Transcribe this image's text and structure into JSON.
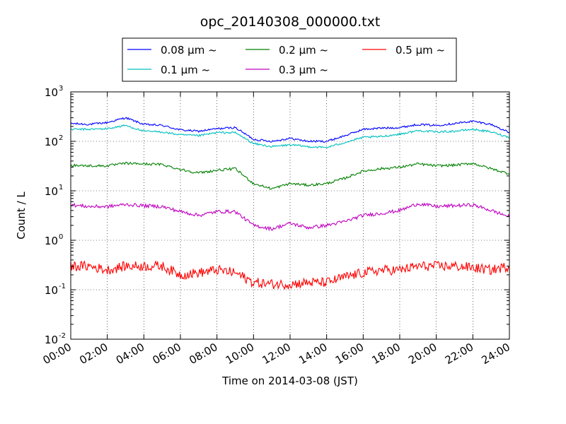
{
  "chart_data": {
    "type": "line",
    "title": "opc_20140308_000000.txt",
    "xlabel": "Time on 2014-03-08 (JST)",
    "ylabel": "Count / L",
    "yscale": "log",
    "ylim_exponents": [
      -2,
      3
    ],
    "yticks": [
      {
        "base": "10",
        "exp": "-2"
      },
      {
        "base": "10",
        "exp": "-1"
      },
      {
        "base": "10",
        "exp": "0"
      },
      {
        "base": "10",
        "exp": "1"
      },
      {
        "base": "10",
        "exp": "2"
      },
      {
        "base": "10",
        "exp": "3"
      }
    ],
    "xlim": [
      "00:00",
      "24:00"
    ],
    "xticks": [
      "00:00",
      "02:00",
      "04:00",
      "06:00",
      "08:00",
      "10:00",
      "12:00",
      "14:00",
      "16:00",
      "18:00",
      "20:00",
      "22:00",
      "24:00"
    ],
    "grid": true,
    "legend": {
      "placement": "top",
      "columns": 3
    },
    "x": [
      "00:00",
      "01:00",
      "02:00",
      "03:00",
      "04:00",
      "05:00",
      "06:00",
      "07:00",
      "08:00",
      "09:00",
      "10:00",
      "11:00",
      "12:00",
      "13:00",
      "14:00",
      "15:00",
      "16:00",
      "17:00",
      "18:00",
      "19:00",
      "20:00",
      "21:00",
      "22:00",
      "23:00",
      "24:00"
    ],
    "series": [
      {
        "name": "0.08 μm ~",
        "color": "#0000ff",
        "noise": 0.02,
        "values": [
          230,
          220,
          240,
          300,
          220,
          210,
          170,
          160,
          180,
          190,
          110,
          100,
          115,
          100,
          100,
          130,
          175,
          185,
          190,
          220,
          210,
          230,
          255,
          220,
          150
        ]
      },
      {
        "name": "0.1 μm ~",
        "color": "#00bfbf",
        "noise": 0.02,
        "values": [
          175,
          175,
          180,
          210,
          160,
          155,
          135,
          130,
          150,
          150,
          90,
          78,
          85,
          78,
          75,
          95,
          120,
          125,
          140,
          165,
          155,
          160,
          175,
          155,
          120
        ]
      },
      {
        "name": "0.2 μm ~",
        "color": "#008000",
        "noise": 0.025,
        "values": [
          33,
          32,
          32,
          36,
          35,
          34,
          27,
          23,
          26,
          28,
          14,
          11,
          14,
          13,
          14,
          18,
          25,
          28,
          30,
          35,
          32,
          33,
          36,
          28,
          22
        ]
      },
      {
        "name": "0.3 μm ~",
        "color": "#bf00bf",
        "noise": 0.035,
        "values": [
          5.2,
          4.8,
          4.8,
          5.3,
          5.0,
          4.8,
          3.8,
          3.2,
          3.8,
          3.8,
          2.0,
          1.7,
          2.2,
          1.8,
          2.0,
          2.4,
          3.2,
          3.5,
          4.0,
          5.5,
          4.8,
          5.0,
          5.2,
          4.0,
          3.0
        ]
      },
      {
        "name": "0.5 μm ~",
        "color": "#ff0000",
        "noise": 0.1,
        "values": [
          0.3,
          0.3,
          0.25,
          0.3,
          0.3,
          0.3,
          0.2,
          0.22,
          0.25,
          0.22,
          0.14,
          0.13,
          0.13,
          0.14,
          0.14,
          0.18,
          0.22,
          0.25,
          0.25,
          0.3,
          0.3,
          0.3,
          0.28,
          0.25,
          0.3
        ]
      }
    ]
  }
}
